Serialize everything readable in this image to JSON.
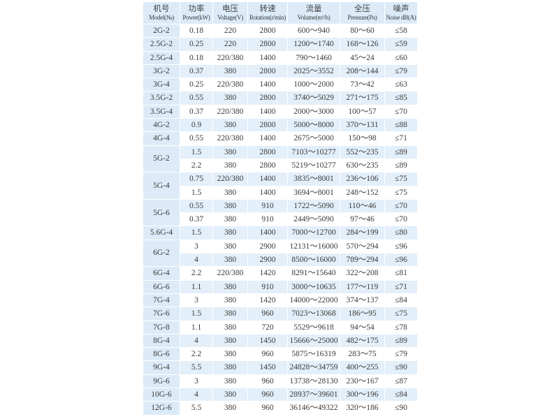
{
  "headers": [
    {
      "zh": "机号",
      "en": "Model(№)"
    },
    {
      "zh": "功率",
      "en": "Power(kW)"
    },
    {
      "zh": "电压",
      "en": "Voltage(V)"
    },
    {
      "zh": "转速",
      "en": "Rotation(r/min)"
    },
    {
      "zh": "流量",
      "en": "Volume(m³/h)"
    },
    {
      "zh": "全压",
      "en": "Pressure(Pa)"
    },
    {
      "zh": "噪声",
      "en": "Noise dB(A)"
    }
  ],
  "rows": [
    {
      "model": "2G-2",
      "power": "0.18",
      "voltage": "220",
      "rotation": "2800",
      "volume": "600～940",
      "pressure": "80～60",
      "noise": "≤58"
    },
    {
      "model": "2.5G-2",
      "power": "0.25",
      "voltage": "220",
      "rotation": "2800",
      "volume": "1200～1740",
      "pressure": "168～126",
      "noise": "≤59"
    },
    {
      "model": "2.5G-4",
      "power": "0.18",
      "voltage": "220/380",
      "rotation": "1400",
      "volume": "790～1460",
      "pressure": "45～24",
      "noise": "≤60"
    },
    {
      "model": "3G-2",
      "power": "0.37",
      "voltage": "380",
      "rotation": "2800",
      "volume": "2025～3552",
      "pressure": "208～144",
      "noise": "≤79"
    },
    {
      "model": "3G-4",
      "power": "0.25",
      "voltage": "220/380",
      "rotation": "1400",
      "volume": "1000～2000",
      "pressure": "73～42",
      "noise": "≤63"
    },
    {
      "model": "3.5G-2",
      "power": "0.55",
      "voltage": "380",
      "rotation": "2800",
      "volume": "3740～5029",
      "pressure": "271～175",
      "noise": "≤85"
    },
    {
      "model": "3.5G-4",
      "power": "0.37",
      "voltage": "220/380",
      "rotation": "1400",
      "volume": "2000～3000",
      "pressure": "100～57",
      "noise": "≤70"
    },
    {
      "model": "4G-2",
      "power": "0.9",
      "voltage": "380",
      "rotation": "2800",
      "volume": "5000～8000",
      "pressure": "370～131",
      "noise": "≤88"
    },
    {
      "model": "4G-4",
      "power": "0.55",
      "voltage": "220/380",
      "rotation": "1400",
      "volume": "2675～5000",
      "pressure": "150～98",
      "noise": "≤71"
    },
    {
      "model": "5G-2",
      "span": 2,
      "power": "1.5",
      "voltage": "380",
      "rotation": "2800",
      "volume": "7103～10277",
      "pressure": "552～235",
      "noise": "≤89"
    },
    {
      "power": "2.2",
      "voltage": "380",
      "rotation": "2800",
      "volume": "5219～10277",
      "pressure": "630～235",
      "noise": "≤89"
    },
    {
      "model": "5G-4",
      "span": 2,
      "power": "0.75",
      "voltage": "220/380",
      "rotation": "1400",
      "volume": "3835～8001",
      "pressure": "236～106",
      "noise": "≤75"
    },
    {
      "power": "1.5",
      "voltage": "380",
      "rotation": "1400",
      "volume": "3694～8001",
      "pressure": "248～152",
      "noise": "≤75"
    },
    {
      "model": "5G-6",
      "span": 2,
      "power": "0.55",
      "voltage": "380",
      "rotation": "910",
      "volume": "1722～5090",
      "pressure": "110～46",
      "noise": "≤70"
    },
    {
      "power": "0.37",
      "voltage": "380",
      "rotation": "910",
      "volume": "2449～5090",
      "pressure": "97～46",
      "noise": "≤70"
    },
    {
      "model": "5.6G-4",
      "power": "1.5",
      "voltage": "380",
      "rotation": "1400",
      "volume": "7000～12700",
      "pressure": "284～199",
      "noise": "≤80"
    },
    {
      "model": "6G-2",
      "span": 2,
      "power": "3",
      "voltage": "380",
      "rotation": "2900",
      "volume": "12131～16000",
      "pressure": "570～294",
      "noise": "≤96"
    },
    {
      "power": "4",
      "voltage": "380",
      "rotation": "2900",
      "volume": "8500～16000",
      "pressure": "789～294",
      "noise": "≤96"
    },
    {
      "model": "6G-4",
      "power": "2.2",
      "voltage": "220/380",
      "rotation": "1420",
      "volume": "8291～15640",
      "pressure": "322～208",
      "noise": "≤81"
    },
    {
      "model": "6G-6",
      "power": "1.1",
      "voltage": "380",
      "rotation": "910",
      "volume": "3000～10635",
      "pressure": "177～119",
      "noise": "≤71"
    },
    {
      "model": "7G-4",
      "power": "3",
      "voltage": "380",
      "rotation": "1420",
      "volume": "14000～22000",
      "pressure": "374～137",
      "noise": "≤84"
    },
    {
      "model": "7G-6",
      "power": "1.5",
      "voltage": "380",
      "rotation": "960",
      "volume": "7023～13068",
      "pressure": "186～95",
      "noise": "≤75"
    },
    {
      "model": "7G-8",
      "power": "1.1",
      "voltage": "380",
      "rotation": "720",
      "volume": "5529～9618",
      "pressure": "94～54",
      "noise": "≤78"
    },
    {
      "model": "8G-4",
      "power": "4",
      "voltage": "380",
      "rotation": "1450",
      "volume": "15666～25000",
      "pressure": "482～175",
      "noise": "≤89"
    },
    {
      "model": "8G-6",
      "power": "2.2",
      "voltage": "380",
      "rotation": "960",
      "volume": "5875～16319",
      "pressure": "283～75",
      "noise": "≤79"
    },
    {
      "model": "9G-4",
      "power": "5.5",
      "voltage": "380",
      "rotation": "1450",
      "volume": "24828～34759",
      "pressure": "400～255",
      "noise": "≤90"
    },
    {
      "model": "9G-6",
      "power": "3",
      "voltage": "380",
      "rotation": "960",
      "volume": "13738～28130",
      "pressure": "230～167",
      "noise": "≤87"
    },
    {
      "model": "10G-6",
      "power": "4",
      "voltage": "380",
      "rotation": "960",
      "volume": "28937～39601",
      "pressure": "300～196",
      "noise": "≤84"
    },
    {
      "model": "12G-6",
      "power": "5.5",
      "voltage": "380",
      "rotation": "960",
      "volume": "36146～49322",
      "pressure": "320～186",
      "noise": "≤90"
    }
  ]
}
